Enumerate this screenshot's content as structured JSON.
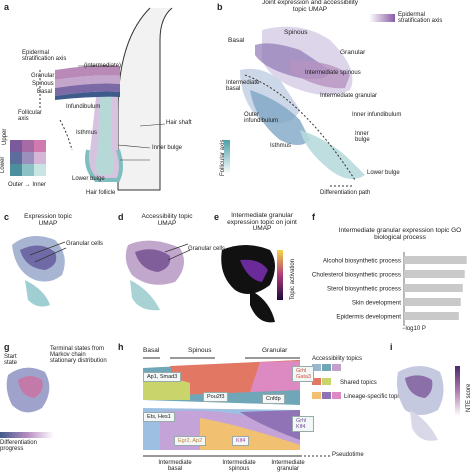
{
  "panels": {
    "a": {
      "letter": "a",
      "epidermal_axis": "Epidermal stratification axis",
      "intermediate": "(intermediate)",
      "granular": "Granular",
      "spinous": "Spinous",
      "basal": "Basal",
      "infundibulum": "Infundibulum",
      "isthmus": "Isthmus",
      "hair_shaft": "Hair shaft",
      "inner_bulge": "Inner bulge",
      "lower_bulge": "Lower bulge",
      "hair_follicle": "Hair follicle",
      "follicular_axis": "Follicular axis",
      "upper": "Upper",
      "lower": "Lower",
      "outer_inner": "Outer → Inner"
    },
    "b": {
      "letter": "b",
      "title": "Joint expression and accessibility topic UMAP",
      "axis_legend": "Epidermal stratification axis",
      "basal": "Basal",
      "spinous": "Spinous",
      "granular": "Granular",
      "int_spinous": "Intermediate spinous",
      "int_basal": "Intermediate basal",
      "int_granular": "Intermediate granular",
      "outer_inf": "Outer infundibulum",
      "inner_inf": "Inner infundibulum",
      "isthmus": "Isthmus",
      "inner_bulge": "Inner bulge",
      "lower_bulge": "Lower bulge",
      "follicular_axis": "Follicular axis",
      "diff_path": "Differentiation path"
    },
    "c": {
      "letter": "c",
      "title": "Expression topic UMAP",
      "label": "Granular cells"
    },
    "d": {
      "letter": "d",
      "title": "Accessibility topic UMAP",
      "label": "Granular cells"
    },
    "e": {
      "letter": "e",
      "title": "Intermediate granular expression topic on joint UMAP",
      "bar_label": "Topic activation"
    },
    "f": {
      "letter": "f",
      "title": "Intermediate granular expression topic GO biological process",
      "xlabel": "−log10 P",
      "bars": [
        {
          "label": "Alcohol biosynthetic process",
          "value": 0.95
        },
        {
          "label": "Cholesterol biosynthetic process",
          "value": 0.92
        },
        {
          "label": "Sterol biosynthetic process",
          "value": 0.89
        },
        {
          "label": "Skin development",
          "value": 0.86
        },
        {
          "label": "Epidermis development",
          "value": 0.83
        }
      ]
    },
    "g": {
      "letter": "g",
      "start": "Start state",
      "terminal": "Terminal states from Markov chain stationary distribution",
      "bar": "Differentiation progress"
    },
    "h": {
      "letter": "h",
      "basal": "Basal",
      "spinous": "Spinous",
      "granular": "Granular",
      "tf_ap1": "Ap1, Smad3",
      "tf_pou": "Pou2f3",
      "tf_cnfdp": "Cnfdp",
      "tf_grhl_top": "Grhl Gata3",
      "tf_ets": "Ets, Hes1",
      "tf_egr": "Egr2, Ap2",
      "tf_klf": "Klf4",
      "tf_grhl_bot": "Grhl Klf4",
      "legend_acc": "Accessibility topics",
      "legend_shared": "Shared topics",
      "legend_lin": "Lineage-specific topics",
      "pseudotime": "Pseudotime",
      "bottom1": "Intermediate basal",
      "bottom2": "Intermediate spinous",
      "bottom3": "Intermediate granular"
    },
    "i": {
      "letter": "i",
      "bar_label": "NTE score"
    }
  }
}
